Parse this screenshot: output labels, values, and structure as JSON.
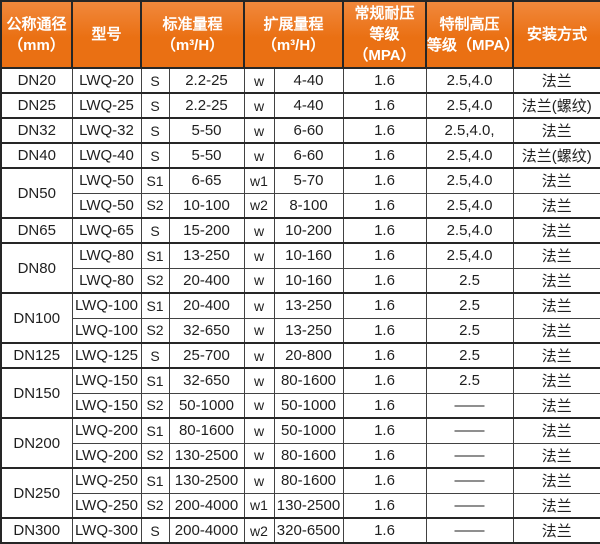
{
  "colors": {
    "header_bg_top": "#f1883c",
    "header_bg": "#ea7013",
    "header_text": "#ffffff",
    "body_text": "#1f1f1f",
    "border_dark": "#262626",
    "border_inner": "#424242",
    "row_bg": "#ffffff"
  },
  "table": {
    "headers": {
      "dn": "公称通径\n（mm）",
      "model": "型号",
      "std": "标准量程\n（m³/H）",
      "ext": "扩展量程\n（m³/H）",
      "normal": "常规耐压\n等级（MPA）",
      "high": "特制高压\n等级（MPA）",
      "install": "安装方式"
    },
    "rows": [
      {
        "dn": "DN20",
        "span": 1,
        "model": "LWQ-20",
        "s": "S",
        "std": "2.2-25",
        "w": "w",
        "ext": "4-40",
        "normal": "1.6",
        "high": "2.5,4.0",
        "install": "法兰"
      },
      {
        "dn": "DN25",
        "span": 1,
        "model": "LWQ-25",
        "s": "S",
        "std": "2.2-25",
        "w": "w",
        "ext": "4-40",
        "normal": "1.6",
        "high": "2.5,4.0",
        "install": "法兰(螺纹)"
      },
      {
        "dn": "DN32",
        "span": 1,
        "model": "LWQ-32",
        "s": "S",
        "std": "5-50",
        "w": "w",
        "ext": "6-60",
        "normal": "1.6",
        "high": "2.5,4.0,",
        "install": "法兰"
      },
      {
        "dn": "DN40",
        "span": 1,
        "model": "LWQ-40",
        "s": "S",
        "std": "5-50",
        "w": "w",
        "ext": "6-60",
        "normal": "1.6",
        "high": "2.5,4.0",
        "install": "法兰(螺纹)"
      },
      {
        "dn": "DN50",
        "span": 2,
        "model": "LWQ-50",
        "s": "S1",
        "std": "6-65",
        "w": "w1",
        "ext": "5-70",
        "normal": "1.6",
        "high": "2.5,4.0",
        "install": "法兰"
      },
      {
        "model": "LWQ-50",
        "s": "S2",
        "std": "10-100",
        "w": "w2",
        "ext": "8-100",
        "normal": "1.6",
        "high": "2.5,4.0",
        "install": "法兰"
      },
      {
        "dn": "DN65",
        "span": 1,
        "model": "LWQ-65",
        "s": "S",
        "std": "15-200",
        "w": "w",
        "ext": "10-200",
        "normal": "1.6",
        "high": "2.5,4.0",
        "install": "法兰"
      },
      {
        "dn": "DN80",
        "span": 2,
        "model": "LWQ-80",
        "s": "S1",
        "std": "13-250",
        "w": "w",
        "ext": "10-160",
        "normal": "1.6",
        "high": "2.5,4.0",
        "install": "法兰"
      },
      {
        "model": "LWQ-80",
        "s": "S2",
        "std": "20-400",
        "w": "w",
        "ext": "10-160",
        "normal": "1.6",
        "high": "2.5",
        "install": "法兰"
      },
      {
        "dn": "DN100",
        "span": 2,
        "model": "LWQ-100",
        "s": "S1",
        "std": "20-400",
        "w": "w",
        "ext": "13-250",
        "normal": "1.6",
        "high": "2.5",
        "install": "法兰"
      },
      {
        "model": "LWQ-100",
        "s": "S2",
        "std": "32-650",
        "w": "w",
        "ext": "13-250",
        "normal": "1.6",
        "high": "2.5",
        "install": "法兰"
      },
      {
        "dn": "DN125",
        "span": 1,
        "model": "LWQ-125",
        "s": "S",
        "std": "25-700",
        "w": "w",
        "ext": "20-800",
        "normal": "1.6",
        "high": "2.5",
        "install": "法兰"
      },
      {
        "dn": "DN150",
        "span": 2,
        "model": "LWQ-150",
        "s": "S1",
        "std": "32-650",
        "w": "w",
        "ext": "80-1600",
        "normal": "1.6",
        "high": "2.5",
        "install": "法兰"
      },
      {
        "model": "LWQ-150",
        "s": "S2",
        "std": "50-1000",
        "w": "w",
        "ext": "50-1000",
        "normal": "1.6",
        "high": "——",
        "install": "法兰"
      },
      {
        "dn": "DN200",
        "span": 2,
        "model": "LWQ-200",
        "s": "S1",
        "std": "80-1600",
        "w": "w",
        "ext": "50-1000",
        "normal": "1.6",
        "high": "——",
        "install": "法兰"
      },
      {
        "model": "LWQ-200",
        "s": "S2",
        "std": "130-2500",
        "w": "w",
        "ext": "80-1600",
        "normal": "1.6",
        "high": "——",
        "install": "法兰"
      },
      {
        "dn": "DN250",
        "span": 2,
        "model": "LWQ-250",
        "s": "S1",
        "std": "130-2500",
        "w": "w",
        "ext": "80-1600",
        "normal": "1.6",
        "high": "——",
        "install": "法兰"
      },
      {
        "model": "LWQ-250",
        "s": "S2",
        "std": "200-4000",
        "w": "w1",
        "ext": "130-2500",
        "normal": "1.6",
        "high": "——",
        "install": "法兰"
      },
      {
        "dn": "DN300",
        "span": 1,
        "model": "LWQ-300",
        "s": "S",
        "std": "200-4000",
        "w": "w2",
        "ext": "320-6500",
        "normal": "1.6",
        "high": "——",
        "install": "法兰"
      }
    ]
  }
}
